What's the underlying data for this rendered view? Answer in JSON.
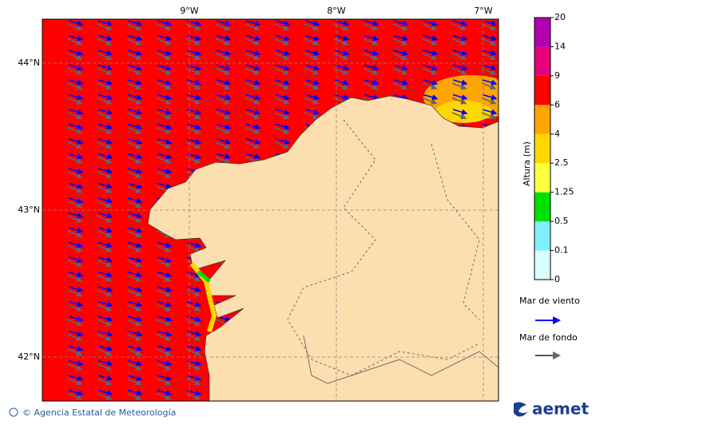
{
  "map": {
    "lon_labels": [
      "9°W",
      "8°W",
      "7°W"
    ],
    "lat_labels": [
      "44°N",
      "43°N",
      "42°N"
    ]
  },
  "colorbar": {
    "title": "Altura (m)",
    "ticks": [
      0,
      0.1,
      0.5,
      1.25,
      2.5,
      4,
      6,
      9,
      14,
      20
    ]
  },
  "legend": [
    {
      "label": "Mar de viento"
    },
    {
      "label": "Mar de fondo"
    }
  ],
  "footer": {
    "credit": "© Agencia Estatal de Meteorología",
    "logo": "aemet"
  }
}
